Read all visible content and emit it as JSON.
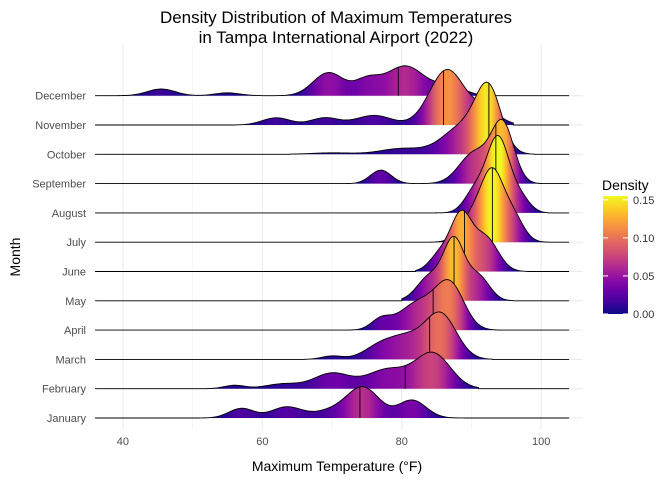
{
  "chart_data": {
    "type": "ridgeline",
    "title": [
      "Density Distribution of Maximum Temperatures",
      "in Tampa International Airport (2022)"
    ],
    "xlabel": "Maximum Temperature (°F)",
    "ylabel": "Month",
    "xlim": [
      37,
      106
    ],
    "x_ticks": [
      40,
      60,
      80,
      100
    ],
    "x_tick_labels": [
      "40",
      "60",
      "80",
      "100"
    ],
    "grid": true,
    "fill_scale": "plasma",
    "legend": {
      "title": "Density",
      "position": "right",
      "ticks": [
        0.15,
        0.1,
        0.05,
        0.0
      ],
      "tick_labels": [
        "0.15",
        "0.10",
        "0.05",
        "0.00"
      ],
      "range": [
        0.0,
        0.155
      ]
    },
    "line_range": [
      36,
      104
    ],
    "months": [
      {
        "name": "January",
        "median": 74,
        "range": [
          51,
          90
        ],
        "peaks": [
          [
            57,
            0.02,
            1.8
          ],
          [
            63.5,
            0.023,
            2.2
          ],
          [
            74.5,
            0.062,
            2.3
          ],
          [
            81.5,
            0.037,
            2.0
          ],
          [
            70,
            0.015,
            2.5
          ]
        ]
      },
      {
        "name": "February",
        "median": 80.5,
        "range": [
          52,
          91
        ],
        "peaks": [
          [
            56,
            0.007,
            1.5
          ],
          [
            70,
            0.032,
            2.6
          ],
          [
            78,
            0.04,
            3.0
          ],
          [
            84.5,
            0.072,
            2.5
          ],
          [
            63,
            0.01,
            2.5
          ]
        ]
      },
      {
        "name": "March",
        "median": 84,
        "range": [
          66,
          93
        ],
        "peaks": [
          [
            70,
            0.007,
            1.5
          ],
          [
            77.5,
            0.035,
            2.5
          ],
          [
            85.5,
            0.096,
            2.3
          ],
          [
            81,
            0.03,
            2.0
          ]
        ]
      },
      {
        "name": "April",
        "median": 84.5,
        "range": [
          71,
          94
        ],
        "peaks": [
          [
            77,
            0.02,
            1.4
          ],
          [
            82.5,
            0.058,
            2.8
          ],
          [
            87,
            0.087,
            2.0
          ]
        ]
      },
      {
        "name": "May",
        "median": 87.5,
        "range": [
          80,
          96
        ],
        "peaks": [
          [
            84,
            0.05,
            1.8
          ],
          [
            87.5,
            0.122,
            1.5
          ],
          [
            91,
            0.05,
            1.6
          ]
        ]
      },
      {
        "name": "June",
        "median": 89,
        "range": [
          82,
          98
        ],
        "peaks": [
          [
            88.5,
            0.112,
            1.5
          ],
          [
            92,
            0.07,
            1.8
          ],
          [
            85.5,
            0.035,
            1.5
          ]
        ]
      },
      {
        "name": "July",
        "median": 93,
        "range": [
          83,
          101
        ],
        "peaks": [
          [
            90,
            0.05,
            1.7
          ],
          [
            93,
            0.138,
            1.6
          ],
          [
            96,
            0.05,
            1.5
          ]
        ]
      },
      {
        "name": "August",
        "median": 93.5,
        "range": [
          83,
          101
        ],
        "peaks": [
          [
            93.8,
            0.155,
            1.6
          ],
          [
            90.5,
            0.045,
            1.5
          ],
          [
            97,
            0.03,
            1.4
          ]
        ]
      },
      {
        "name": "September",
        "median": 93.5,
        "range": [
          71,
          100
        ],
        "peaks": [
          [
            77,
            0.028,
            1.5
          ],
          [
            90.5,
            0.065,
            2.2
          ],
          [
            94.5,
            0.12,
            1.6
          ]
        ]
      },
      {
        "name": "October",
        "median": 92.5,
        "range": [
          64,
          99
        ],
        "peaks": [
          [
            70,
            0.003,
            3.0
          ],
          [
            80,
            0.012,
            3.0
          ],
          [
            89,
            0.06,
            3.0
          ],
          [
            92.5,
            0.118,
            1.8
          ]
        ]
      },
      {
        "name": "November",
        "median": 86,
        "range": [
          56,
          96
        ],
        "peaks": [
          [
            62,
            0.015,
            2.0
          ],
          [
            69,
            0.015,
            2.0
          ],
          [
            76,
            0.02,
            2.5
          ],
          [
            86.5,
            0.115,
            2.5
          ],
          [
            92,
            0.03,
            2.0
          ]
        ]
      },
      {
        "name": "December",
        "median": 79.5,
        "range": [
          37,
          93
        ],
        "peaks": [
          [
            45.5,
            0.014,
            2.0
          ],
          [
            55,
            0.006,
            1.8
          ],
          [
            69.5,
            0.048,
            2.2
          ],
          [
            75,
            0.03,
            1.8
          ],
          [
            80.5,
            0.062,
            2.8
          ],
          [
            87,
            0.02,
            2.0
          ]
        ]
      }
    ]
  }
}
